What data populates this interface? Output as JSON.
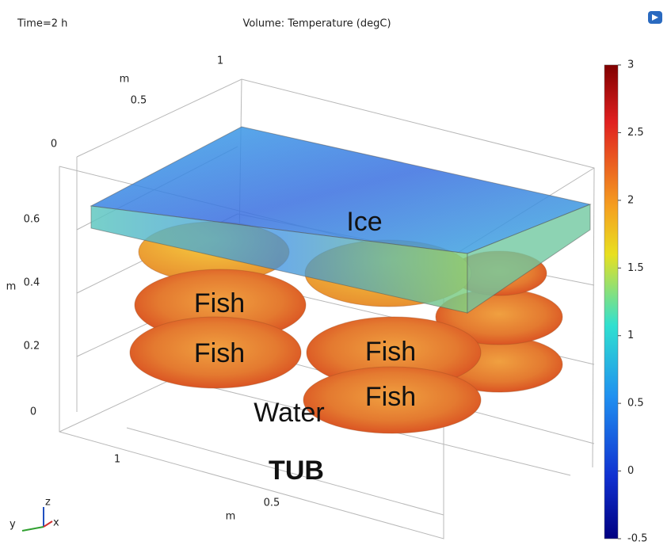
{
  "header": {
    "time": "Time=2 h",
    "title": "Volume: Temperature (degC)"
  },
  "axes": {
    "depth": {
      "unit": "m",
      "ticks": [
        1,
        0.5,
        0
      ]
    },
    "height": {
      "unit": "m",
      "ticks": [
        0.6,
        0.4,
        0.2,
        0
      ]
    },
    "width": {
      "unit": "m",
      "ticks": [
        1,
        0.5
      ]
    }
  },
  "labels": {
    "ice": "Ice",
    "fish": [
      "Fish",
      "Fish",
      "Fish",
      "Fish"
    ],
    "water": "Water",
    "tub": "TUB"
  },
  "colorbar": {
    "ticks": [
      3,
      2.5,
      2,
      1.5,
      1,
      0.5,
      0,
      -0.5
    ]
  },
  "triad": {
    "z": "z",
    "y": "y",
    "x": "x"
  }
}
